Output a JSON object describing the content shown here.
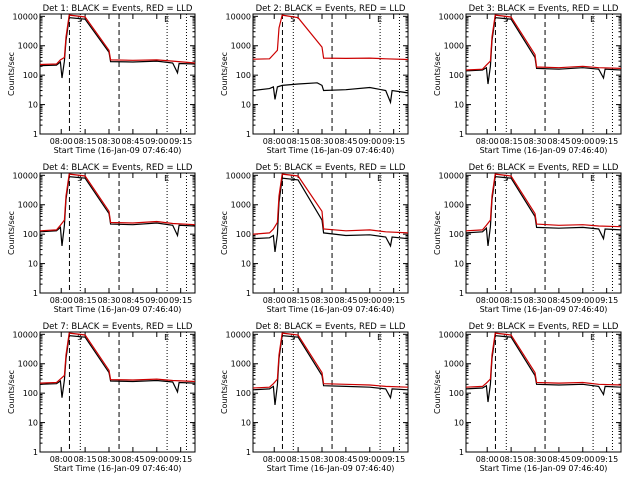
{
  "chart_data": [
    {
      "type": "line",
      "title": "Det 1: BLACK = Events, RED = LLD",
      "xlabel": "Start Time (16-Jan-09 07:46:40)",
      "ylabel": "Counts/sec",
      "xticks": [
        "08:00",
        "08:15",
        "08:30",
        "08:45",
        "09:00",
        "09:15"
      ],
      "yticks": [
        "1",
        "10",
        "100",
        "1000",
        "10000"
      ],
      "ylim": [
        1,
        12000
      ],
      "xlim": [
        "07:46:40",
        "09:24:00"
      ],
      "yscale": "log",
      "markers": [
        "S",
        "E"
      ],
      "series": [
        {
          "name": "Events",
          "color": "#000000",
          "x": [
            "07:46:40",
            "07:57:00",
            "07:59:30",
            "08:00:30",
            "08:02:00",
            "08:03:00",
            "08:05:00",
            "08:15:00",
            "08:30:00",
            "08:31:00",
            "08:45:00",
            "09:00:00",
            "09:10:00",
            "09:13:00",
            "09:14:00",
            "09:24:00"
          ],
          "y": [
            210,
            220,
            280,
            80,
            300,
            1500,
            9000,
            8000,
            600,
            290,
            280,
            300,
            260,
            120,
            250,
            240
          ]
        },
        {
          "name": "LLD",
          "color": "#cc0000",
          "x": [
            "07:46:40",
            "07:57:00",
            "07:59:30",
            "08:02:00",
            "08:03:00",
            "08:05:00",
            "08:15:00",
            "08:30:00",
            "08:31:00",
            "08:45:00",
            "09:00:00",
            "09:10:00",
            "09:24:00"
          ],
          "y": [
            230,
            240,
            330,
            400,
            2000,
            11000,
            9500,
            700,
            330,
            320,
            330,
            300,
            260
          ]
        }
      ]
    },
    {
      "type": "line",
      "title": "Det 2: BLACK = Events, RED = LLD",
      "xlabel": "Start Time (16-Jan-09 07:46:40)",
      "ylabel": "Counts/sec",
      "xticks": [
        "08:00",
        "08:15",
        "08:30",
        "08:45",
        "09:00",
        "09:15"
      ],
      "yticks": [
        "1",
        "10",
        "100",
        "1000",
        "10000"
      ],
      "ylim": [
        1,
        12000
      ],
      "xlim": [
        "07:46:40",
        "09:24:00"
      ],
      "yscale": "log",
      "markers": [
        "S",
        "E"
      ],
      "series": [
        {
          "name": "Events",
          "color": "#000000",
          "x": [
            "07:46:40",
            "07:57:00",
            "07:59:30",
            "08:00:30",
            "08:02:00",
            "08:05:00",
            "08:15:00",
            "08:27:00",
            "08:30:00",
            "08:31:00",
            "08:45:00",
            "09:00:00",
            "09:10:00",
            "09:13:00",
            "09:14:00",
            "09:24:00"
          ],
          "y": [
            30,
            35,
            40,
            15,
            40,
            45,
            50,
            55,
            45,
            30,
            32,
            38,
            30,
            12,
            30,
            25
          ]
        },
        {
          "name": "LLD",
          "color": "#cc0000",
          "x": [
            "07:46:40",
            "07:57:00",
            "07:59:30",
            "08:02:00",
            "08:03:00",
            "08:05:00",
            "08:15:00",
            "08:30:00",
            "08:31:00",
            "08:45:00",
            "09:00:00",
            "09:10:00",
            "09:24:00"
          ],
          "y": [
            350,
            360,
            500,
            700,
            4000,
            11000,
            9000,
            900,
            380,
            370,
            380,
            360,
            340
          ]
        }
      ]
    },
    {
      "type": "line",
      "title": "Det 3: BLACK = Events, RED = LLD",
      "xlabel": "Start Time (16-Jan-09 07:46:40)",
      "ylabel": "Counts/sec",
      "xticks": [
        "08:00",
        "08:15",
        "08:30",
        "08:45",
        "09:00",
        "09:15"
      ],
      "yticks": [
        "1",
        "10",
        "100",
        "1000",
        "10000"
      ],
      "ylim": [
        1,
        12000
      ],
      "xlim": [
        "07:46:40",
        "09:24:00"
      ],
      "yscale": "log",
      "markers": [
        "S",
        "E"
      ],
      "series": [
        {
          "name": "Events",
          "color": "#000000",
          "x": [
            "07:46:40",
            "07:57:00",
            "07:59:30",
            "08:00:30",
            "08:02:00",
            "08:03:00",
            "08:05:00",
            "08:15:00",
            "08:30:00",
            "08:31:00",
            "08:45:00",
            "09:00:00",
            "09:10:00",
            "09:13:00",
            "09:14:00",
            "09:24:00"
          ],
          "y": [
            140,
            150,
            180,
            50,
            200,
            1500,
            9000,
            8000,
            400,
            170,
            160,
            180,
            160,
            80,
            160,
            150
          ]
        },
        {
          "name": "LLD",
          "color": "#cc0000",
          "x": [
            "07:46:40",
            "07:57:00",
            "07:59:30",
            "08:02:00",
            "08:03:00",
            "08:05:00",
            "08:15:00",
            "08:30:00",
            "08:31:00",
            "08:45:00",
            "09:00:00",
            "09:10:00",
            "09:24:00"
          ],
          "y": [
            150,
            160,
            220,
            300,
            2000,
            11000,
            9500,
            500,
            190,
            180,
            200,
            180,
            170
          ]
        }
      ]
    },
    {
      "type": "line",
      "title": "Det 4: BLACK = Events, RED = LLD",
      "xlabel": "Start Time (16-Jan-09 07:46:40)",
      "ylabel": "Counts/sec",
      "xticks": [
        "08:00",
        "08:15",
        "08:30",
        "08:45",
        "09:00",
        "09:15"
      ],
      "yticks": [
        "1",
        "10",
        "100",
        "1000",
        "10000"
      ],
      "ylim": [
        1,
        12000
      ],
      "xlim": [
        "07:46:40",
        "09:24:00"
      ],
      "yscale": "log",
      "markers": [
        "S",
        "E"
      ],
      "series": [
        {
          "name": "Events",
          "color": "#000000",
          "x": [
            "07:46:40",
            "07:57:00",
            "07:59:30",
            "08:00:30",
            "08:02:00",
            "08:03:00",
            "08:05:00",
            "08:15:00",
            "08:30:00",
            "08:31:00",
            "08:45:00",
            "09:00:00",
            "09:10:00",
            "09:13:00",
            "09:14:00",
            "09:24:00"
          ],
          "y": [
            120,
            130,
            170,
            40,
            200,
            1500,
            9000,
            8000,
            500,
            220,
            210,
            240,
            200,
            90,
            200,
            190
          ]
        },
        {
          "name": "LLD",
          "color": "#cc0000",
          "x": [
            "07:46:40",
            "07:57:00",
            "07:59:30",
            "08:02:00",
            "08:03:00",
            "08:05:00",
            "08:15:00",
            "08:30:00",
            "08:31:00",
            "08:45:00",
            "09:00:00",
            "09:10:00",
            "09:24:00"
          ],
          "y": [
            130,
            140,
            200,
            300,
            2000,
            11000,
            9500,
            600,
            250,
            240,
            270,
            230,
            210
          ]
        }
      ]
    },
    {
      "type": "line",
      "title": "Det 5: BLACK = Events, RED = LLD",
      "xlabel": "Start Time (16-Jan-09 07:46:40)",
      "ylabel": "Counts/sec",
      "xticks": [
        "08:00",
        "08:15",
        "08:30",
        "08:45",
        "09:00",
        "09:15"
      ],
      "yticks": [
        "1",
        "10",
        "100",
        "1000",
        "10000"
      ],
      "ylim": [
        1,
        12000
      ],
      "xlim": [
        "07:46:40",
        "09:24:00"
      ],
      "yscale": "log",
      "markers": [
        "S",
        "E"
      ],
      "series": [
        {
          "name": "Events",
          "color": "#000000",
          "x": [
            "07:46:40",
            "07:57:00",
            "07:59:30",
            "08:00:30",
            "08:02:00",
            "08:03:00",
            "08:05:00",
            "08:15:00",
            "08:30:00",
            "08:31:00",
            "08:45:00",
            "09:00:00",
            "09:10:00",
            "09:13:00",
            "09:14:00",
            "09:24:00"
          ],
          "y": [
            70,
            75,
            90,
            25,
            100,
            1200,
            8000,
            7000,
            300,
            110,
            90,
            95,
            80,
            40,
            80,
            70
          ]
        },
        {
          "name": "LLD",
          "color": "#cc0000",
          "x": [
            "07:46:40",
            "07:57:00",
            "07:59:30",
            "08:02:00",
            "08:03:00",
            "08:05:00",
            "08:15:00",
            "08:30:00",
            "08:31:00",
            "08:45:00",
            "09:00:00",
            "09:10:00",
            "09:24:00"
          ],
          "y": [
            100,
            110,
            150,
            250,
            2000,
            11000,
            9500,
            600,
            150,
            130,
            140,
            120,
            110
          ]
        }
      ]
    },
    {
      "type": "line",
      "title": "Det 6: BLACK = Events, RED = LLD",
      "xlabel": "Start Time (16-Jan-09 07:46:40)",
      "ylabel": "Counts/sec",
      "xticks": [
        "08:00",
        "08:15",
        "08:30",
        "08:45",
        "09:00",
        "09:15"
      ],
      "yticks": [
        "1",
        "10",
        "100",
        "1000",
        "10000"
      ],
      "ylim": [
        1,
        12000
      ],
      "xlim": [
        "07:46:40",
        "09:24:00"
      ],
      "yscale": "log",
      "markers": [
        "S",
        "E"
      ],
      "series": [
        {
          "name": "Events",
          "color": "#000000",
          "x": [
            "07:46:40",
            "07:57:00",
            "07:59:30",
            "08:00:30",
            "08:02:00",
            "08:03:00",
            "08:05:00",
            "08:15:00",
            "08:30:00",
            "08:31:00",
            "08:45:00",
            "09:00:00",
            "09:10:00",
            "09:13:00",
            "09:14:00",
            "09:24:00"
          ],
          "y": [
            110,
            120,
            160,
            40,
            180,
            1500,
            9000,
            8000,
            400,
            170,
            160,
            170,
            150,
            70,
            150,
            140
          ]
        },
        {
          "name": "LLD",
          "color": "#cc0000",
          "x": [
            "07:46:40",
            "07:57:00",
            "07:59:30",
            "08:02:00",
            "08:03:00",
            "08:05:00",
            "08:15:00",
            "08:30:00",
            "08:31:00",
            "08:45:00",
            "09:00:00",
            "09:10:00",
            "09:24:00"
          ],
          "y": [
            130,
            140,
            200,
            300,
            2000,
            11000,
            9500,
            500,
            220,
            200,
            210,
            190,
            180
          ]
        }
      ]
    },
    {
      "type": "line",
      "title": "Det 7: BLACK = Events, RED = LLD",
      "xlabel": "Start Time (16-Jan-09 07:46:40)",
      "ylabel": "Counts/sec",
      "xticks": [
        "08:00",
        "08:15",
        "08:30",
        "08:45",
        "09:00",
        "09:15"
      ],
      "yticks": [
        "1",
        "10",
        "100",
        "1000",
        "10000"
      ],
      "ylim": [
        1,
        12000
      ],
      "xlim": [
        "07:46:40",
        "09:24:00"
      ],
      "yscale": "log",
      "markers": [
        "S",
        "E"
      ],
      "series": [
        {
          "name": "Events",
          "color": "#000000",
          "x": [
            "07:46:40",
            "07:57:00",
            "07:59:30",
            "08:00:30",
            "08:02:00",
            "08:03:00",
            "08:05:00",
            "08:15:00",
            "08:30:00",
            "08:31:00",
            "08:45:00",
            "09:00:00",
            "09:10:00",
            "09:13:00",
            "09:14:00",
            "09:24:00"
          ],
          "y": [
            200,
            210,
            260,
            70,
            280,
            1500,
            9000,
            8000,
            500,
            260,
            250,
            270,
            240,
            110,
            230,
            220
          ]
        },
        {
          "name": "LLD",
          "color": "#cc0000",
          "x": [
            "07:46:40",
            "07:57:00",
            "07:59:30",
            "08:02:00",
            "08:03:00",
            "08:05:00",
            "08:15:00",
            "08:30:00",
            "08:31:00",
            "08:45:00",
            "09:00:00",
            "09:10:00",
            "09:24:00"
          ],
          "y": [
            220,
            230,
            300,
            400,
            2000,
            11000,
            9500,
            600,
            290,
            280,
            300,
            270,
            250
          ]
        }
      ]
    },
    {
      "type": "line",
      "title": "Det 8: BLACK = Events, RED = LLD",
      "xlabel": "Start Time (16-Jan-09 07:46:40)",
      "ylabel": "Counts/sec",
      "xticks": [
        "08:00",
        "08:15",
        "08:30",
        "08:45",
        "09:00",
        "09:15"
      ],
      "yticks": [
        "1",
        "10",
        "100",
        "1000",
        "10000"
      ],
      "ylim": [
        1,
        12000
      ],
      "xlim": [
        "07:46:40",
        "09:24:00"
      ],
      "yscale": "log",
      "markers": [
        "S",
        "E"
      ],
      "series": [
        {
          "name": "Events",
          "color": "#000000",
          "x": [
            "07:46:40",
            "07:57:00",
            "07:59:30",
            "08:00:30",
            "08:02:00",
            "08:03:00",
            "08:05:00",
            "08:15:00",
            "08:30:00",
            "08:31:00",
            "08:45:00",
            "09:00:00",
            "09:10:00",
            "09:13:00",
            "09:14:00",
            "09:24:00"
          ],
          "y": [
            130,
            140,
            170,
            40,
            190,
            1500,
            9000,
            8000,
            400,
            180,
            170,
            160,
            140,
            70,
            140,
            130
          ]
        },
        {
          "name": "LLD",
          "color": "#cc0000",
          "x": [
            "07:46:40",
            "07:57:00",
            "07:59:30",
            "08:02:00",
            "08:03:00",
            "08:05:00",
            "08:15:00",
            "08:30:00",
            "08:31:00",
            "08:45:00",
            "09:00:00",
            "09:10:00",
            "09:24:00"
          ],
          "y": [
            150,
            160,
            210,
            300,
            2000,
            11000,
            9500,
            500,
            210,
            200,
            190,
            170,
            160
          ]
        }
      ]
    },
    {
      "type": "line",
      "title": "Det 9: BLACK = Events, RED = LLD",
      "xlabel": "Start Time (16-Jan-09 07:46:40)",
      "ylabel": "Counts/sec",
      "xticks": [
        "08:00",
        "08:15",
        "08:30",
        "08:45",
        "09:00",
        "09:15"
      ],
      "yticks": [
        "1",
        "10",
        "100",
        "1000",
        "10000"
      ],
      "ylim": [
        1,
        12000
      ],
      "xlim": [
        "07:46:40",
        "09:24:00"
      ],
      "yscale": "log",
      "markers": [
        "S",
        "E"
      ],
      "series": [
        {
          "name": "Events",
          "color": "#000000",
          "x": [
            "07:46:40",
            "07:57:00",
            "07:59:30",
            "08:00:30",
            "08:02:00",
            "08:03:00",
            "08:05:00",
            "08:15:00",
            "08:30:00",
            "08:31:00",
            "08:45:00",
            "09:00:00",
            "09:10:00",
            "09:13:00",
            "09:14:00",
            "09:24:00"
          ],
          "y": [
            140,
            150,
            180,
            50,
            200,
            1500,
            9000,
            8000,
            400,
            200,
            190,
            200,
            170,
            90,
            170,
            160
          ]
        },
        {
          "name": "LLD",
          "color": "#cc0000",
          "x": [
            "07:46:40",
            "07:57:00",
            "07:59:30",
            "08:02:00",
            "08:03:00",
            "08:05:00",
            "08:15:00",
            "08:30:00",
            "08:31:00",
            "08:45:00",
            "09:00:00",
            "09:10:00",
            "09:24:00"
          ],
          "y": [
            160,
            170,
            220,
            300,
            2000,
            11000,
            9500,
            500,
            230,
            220,
            230,
            200,
            190
          ]
        }
      ]
    }
  ]
}
